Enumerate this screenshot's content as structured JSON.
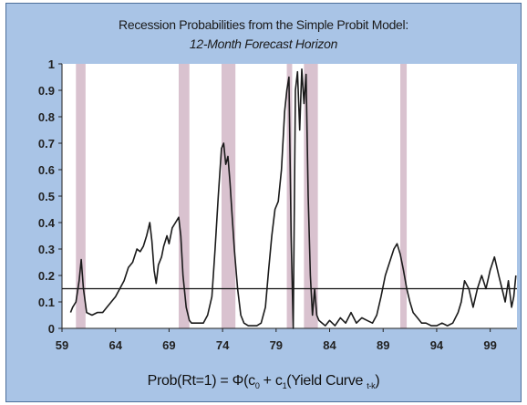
{
  "chart_data": {
    "type": "line",
    "title": "Recession Probabilities from the Simple Probit Model:",
    "subtitle": "12-Month Forecast Horizon",
    "xlabel": "Prob(Rt=1) = Φ(c0 + c1(Yield Curve t-k))",
    "ylabel": "",
    "xlim": [
      59,
      101.5
    ],
    "ylim": [
      0,
      1
    ],
    "x_ticks": [
      "59",
      "64",
      "69",
      "74",
      "79",
      "84",
      "89",
      "94",
      "99"
    ],
    "y_ticks": [
      "0",
      "0.1",
      "0.2",
      "0.3",
      "0.4",
      "0.5",
      "0.6",
      "0.7",
      "0.8",
      "0.9",
      "1"
    ],
    "recession_periods": [
      [
        60.3,
        61.2
      ],
      [
        69.9,
        70.9
      ],
      [
        73.9,
        75.2
      ],
      [
        80.0,
        80.5
      ],
      [
        81.6,
        82.9
      ],
      [
        90.6,
        91.2
      ]
    ],
    "threshold": 0.15,
    "series": [
      {
        "x": [
          59.8,
          60.0,
          60.3,
          60.6,
          60.8,
          61.0,
          61.3,
          61.8,
          62.3,
          62.8,
          63.2,
          63.6,
          64.0,
          64.4,
          64.8,
          65.2,
          65.6,
          66.0,
          66.3,
          66.6,
          66.9,
          67.2,
          67.4,
          67.6,
          67.8,
          68.0,
          68.3,
          68.5,
          68.8,
          69.0,
          69.3,
          69.6,
          69.9,
          70.1,
          70.3,
          70.6,
          70.9,
          71.1,
          71.4,
          71.8,
          72.2,
          72.6,
          73.0,
          73.3,
          73.6,
          73.9,
          74.1,
          74.3,
          74.5,
          74.7,
          74.9,
          75.1,
          75.4,
          75.7,
          76.0,
          76.4,
          76.8,
          77.2,
          77.6,
          78.0,
          78.3,
          78.6,
          78.9,
          79.2,
          79.5,
          79.8,
          80.0,
          80.2,
          80.4,
          80.6,
          80.8,
          81.0,
          81.2,
          81.4,
          81.6,
          81.8,
          82.0,
          82.2,
          82.4,
          82.6,
          82.8,
          83.0,
          83.3,
          83.6,
          84.0,
          84.5,
          85.0,
          85.5,
          86.0,
          86.5,
          87.0,
          87.5,
          88.0,
          88.4,
          88.8,
          89.2,
          89.6,
          90.0,
          90.3,
          90.6,
          90.9,
          91.2,
          91.5,
          91.8,
          92.2,
          92.6,
          93.0,
          93.5,
          94.0,
          94.5,
          95.0,
          95.5,
          96.0,
          96.3,
          96.6,
          97.0,
          97.4,
          97.8,
          98.2,
          98.6,
          99.0,
          99.4,
          99.8,
          100.1,
          100.4,
          100.7,
          101.0,
          101.2,
          101.4
        ],
        "y": [
          0.06,
          0.08,
          0.1,
          0.18,
          0.26,
          0.15,
          0.06,
          0.05,
          0.06,
          0.06,
          0.08,
          0.1,
          0.12,
          0.15,
          0.18,
          0.23,
          0.25,
          0.3,
          0.29,
          0.31,
          0.35,
          0.4,
          0.33,
          0.22,
          0.17,
          0.24,
          0.27,
          0.31,
          0.35,
          0.32,
          0.38,
          0.4,
          0.42,
          0.35,
          0.2,
          0.08,
          0.03,
          0.02,
          0.02,
          0.02,
          0.02,
          0.05,
          0.12,
          0.3,
          0.5,
          0.68,
          0.7,
          0.62,
          0.65,
          0.55,
          0.42,
          0.3,
          0.15,
          0.05,
          0.02,
          0.01,
          0.01,
          0.01,
          0.02,
          0.08,
          0.22,
          0.35,
          0.45,
          0.48,
          0.6,
          0.82,
          0.9,
          0.95,
          0.35,
          0.0,
          0.9,
          0.97,
          0.75,
          0.98,
          0.85,
          0.96,
          0.5,
          0.2,
          0.05,
          0.15,
          0.05,
          0.03,
          0.02,
          0.01,
          0.03,
          0.01,
          0.04,
          0.02,
          0.06,
          0.02,
          0.04,
          0.03,
          0.02,
          0.05,
          0.12,
          0.2,
          0.25,
          0.3,
          0.32,
          0.28,
          0.22,
          0.15,
          0.1,
          0.06,
          0.04,
          0.02,
          0.02,
          0.01,
          0.01,
          0.02,
          0.01,
          0.02,
          0.06,
          0.1,
          0.18,
          0.15,
          0.08,
          0.15,
          0.2,
          0.15,
          0.22,
          0.27,
          0.2,
          0.15,
          0.1,
          0.18,
          0.08,
          0.12,
          0.2
        ]
      }
    ],
    "colors": {
      "background": "#a9c4e6",
      "plot_area": "#ffffff",
      "recession_band": "#d9c2cf",
      "line": "#1a1a1a"
    }
  },
  "formula": {
    "prefix": "Prob(Rt=1) = Φ(c",
    "sub0": "0",
    "mid": " + c",
    "sub1": "1",
    "suffix1": "(Yield Curve ",
    "sub_t": "t-k",
    "suffix2": ")"
  }
}
